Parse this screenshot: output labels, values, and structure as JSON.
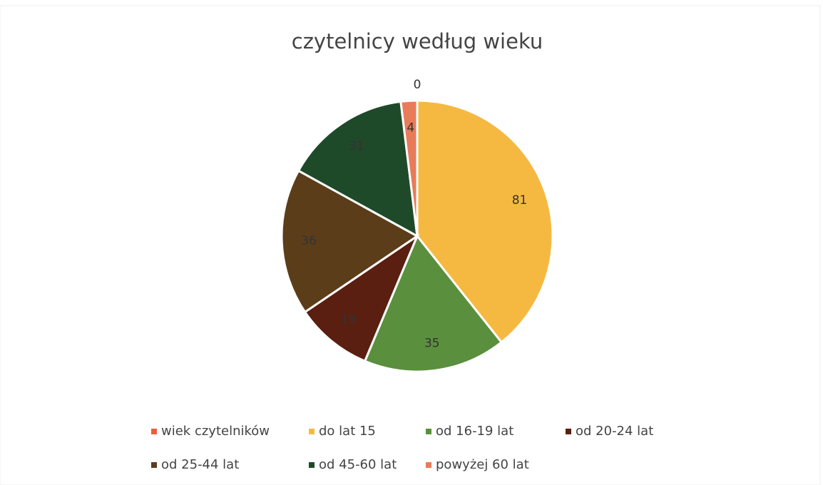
{
  "chart_data": {
    "type": "pie",
    "title": "czytelnicy według wieku",
    "categories": [
      "wiek czytelników",
      "do lat 15",
      "od 16-19 lat",
      "od 20-24 lat",
      "od 25-44 lat",
      "od 45-60 lat",
      "powyżej 60 lat"
    ],
    "values": [
      0,
      81,
      35,
      19,
      36,
      31,
      4
    ],
    "colors": [
      "#e8603c",
      "#f5b942",
      "#5a8f3e",
      "#5a1f10",
      "#5c3d1a",
      "#1e4a2a",
      "#e87b5a"
    ],
    "legend": "bottom"
  }
}
